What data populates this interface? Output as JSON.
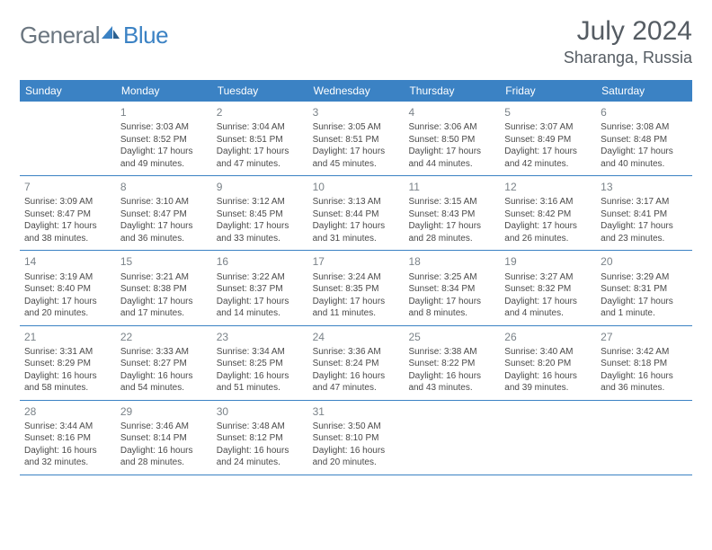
{
  "brand": {
    "word1": "General",
    "word2": "Blue"
  },
  "header": {
    "title": "July 2024",
    "location": "Sharanga, Russia"
  },
  "colors": {
    "header_bg": "#3b82c4",
    "header_text": "#ffffff",
    "row_border": "#3b82c4",
    "day_num": "#7a8288",
    "body_text": "#4a4a4a",
    "title_text": "#555c63",
    "logo_gray": "#6b7680",
    "logo_blue": "#3b82c4",
    "page_bg": "#ffffff"
  },
  "dayNames": [
    "Sunday",
    "Monday",
    "Tuesday",
    "Wednesday",
    "Thursday",
    "Friday",
    "Saturday"
  ],
  "weeks": [
    [
      null,
      {
        "n": "1",
        "sunrise": "3:03 AM",
        "sunset": "8:52 PM",
        "dl1": "17 hours",
        "dl2": "and 49 minutes."
      },
      {
        "n": "2",
        "sunrise": "3:04 AM",
        "sunset": "8:51 PM",
        "dl1": "17 hours",
        "dl2": "and 47 minutes."
      },
      {
        "n": "3",
        "sunrise": "3:05 AM",
        "sunset": "8:51 PM",
        "dl1": "17 hours",
        "dl2": "and 45 minutes."
      },
      {
        "n": "4",
        "sunrise": "3:06 AM",
        "sunset": "8:50 PM",
        "dl1": "17 hours",
        "dl2": "and 44 minutes."
      },
      {
        "n": "5",
        "sunrise": "3:07 AM",
        "sunset": "8:49 PM",
        "dl1": "17 hours",
        "dl2": "and 42 minutes."
      },
      {
        "n": "6",
        "sunrise": "3:08 AM",
        "sunset": "8:48 PM",
        "dl1": "17 hours",
        "dl2": "and 40 minutes."
      }
    ],
    [
      {
        "n": "7",
        "sunrise": "3:09 AM",
        "sunset": "8:47 PM",
        "dl1": "17 hours",
        "dl2": "and 38 minutes."
      },
      {
        "n": "8",
        "sunrise": "3:10 AM",
        "sunset": "8:47 PM",
        "dl1": "17 hours",
        "dl2": "and 36 minutes."
      },
      {
        "n": "9",
        "sunrise": "3:12 AM",
        "sunset": "8:45 PM",
        "dl1": "17 hours",
        "dl2": "and 33 minutes."
      },
      {
        "n": "10",
        "sunrise": "3:13 AM",
        "sunset": "8:44 PM",
        "dl1": "17 hours",
        "dl2": "and 31 minutes."
      },
      {
        "n": "11",
        "sunrise": "3:15 AM",
        "sunset": "8:43 PM",
        "dl1": "17 hours",
        "dl2": "and 28 minutes."
      },
      {
        "n": "12",
        "sunrise": "3:16 AM",
        "sunset": "8:42 PM",
        "dl1": "17 hours",
        "dl2": "and 26 minutes."
      },
      {
        "n": "13",
        "sunrise": "3:17 AM",
        "sunset": "8:41 PM",
        "dl1": "17 hours",
        "dl2": "and 23 minutes."
      }
    ],
    [
      {
        "n": "14",
        "sunrise": "3:19 AM",
        "sunset": "8:40 PM",
        "dl1": "17 hours",
        "dl2": "and 20 minutes."
      },
      {
        "n": "15",
        "sunrise": "3:21 AM",
        "sunset": "8:38 PM",
        "dl1": "17 hours",
        "dl2": "and 17 minutes."
      },
      {
        "n": "16",
        "sunrise": "3:22 AM",
        "sunset": "8:37 PM",
        "dl1": "17 hours",
        "dl2": "and 14 minutes."
      },
      {
        "n": "17",
        "sunrise": "3:24 AM",
        "sunset": "8:35 PM",
        "dl1": "17 hours",
        "dl2": "and 11 minutes."
      },
      {
        "n": "18",
        "sunrise": "3:25 AM",
        "sunset": "8:34 PM",
        "dl1": "17 hours",
        "dl2": "and 8 minutes."
      },
      {
        "n": "19",
        "sunrise": "3:27 AM",
        "sunset": "8:32 PM",
        "dl1": "17 hours",
        "dl2": "and 4 minutes."
      },
      {
        "n": "20",
        "sunrise": "3:29 AM",
        "sunset": "8:31 PM",
        "dl1": "17 hours",
        "dl2": "and 1 minute."
      }
    ],
    [
      {
        "n": "21",
        "sunrise": "3:31 AM",
        "sunset": "8:29 PM",
        "dl1": "16 hours",
        "dl2": "and 58 minutes."
      },
      {
        "n": "22",
        "sunrise": "3:33 AM",
        "sunset": "8:27 PM",
        "dl1": "16 hours",
        "dl2": "and 54 minutes."
      },
      {
        "n": "23",
        "sunrise": "3:34 AM",
        "sunset": "8:25 PM",
        "dl1": "16 hours",
        "dl2": "and 51 minutes."
      },
      {
        "n": "24",
        "sunrise": "3:36 AM",
        "sunset": "8:24 PM",
        "dl1": "16 hours",
        "dl2": "and 47 minutes."
      },
      {
        "n": "25",
        "sunrise": "3:38 AM",
        "sunset": "8:22 PM",
        "dl1": "16 hours",
        "dl2": "and 43 minutes."
      },
      {
        "n": "26",
        "sunrise": "3:40 AM",
        "sunset": "8:20 PM",
        "dl1": "16 hours",
        "dl2": "and 39 minutes."
      },
      {
        "n": "27",
        "sunrise": "3:42 AM",
        "sunset": "8:18 PM",
        "dl1": "16 hours",
        "dl2": "and 36 minutes."
      }
    ],
    [
      {
        "n": "28",
        "sunrise": "3:44 AM",
        "sunset": "8:16 PM",
        "dl1": "16 hours",
        "dl2": "and 32 minutes."
      },
      {
        "n": "29",
        "sunrise": "3:46 AM",
        "sunset": "8:14 PM",
        "dl1": "16 hours",
        "dl2": "and 28 minutes."
      },
      {
        "n": "30",
        "sunrise": "3:48 AM",
        "sunset": "8:12 PM",
        "dl1": "16 hours",
        "dl2": "and 24 minutes."
      },
      {
        "n": "31",
        "sunrise": "3:50 AM",
        "sunset": "8:10 PM",
        "dl1": "16 hours",
        "dl2": "and 20 minutes."
      },
      null,
      null,
      null
    ]
  ],
  "labels": {
    "sunrise": "Sunrise:",
    "sunset": "Sunset:",
    "daylight": "Daylight:"
  }
}
